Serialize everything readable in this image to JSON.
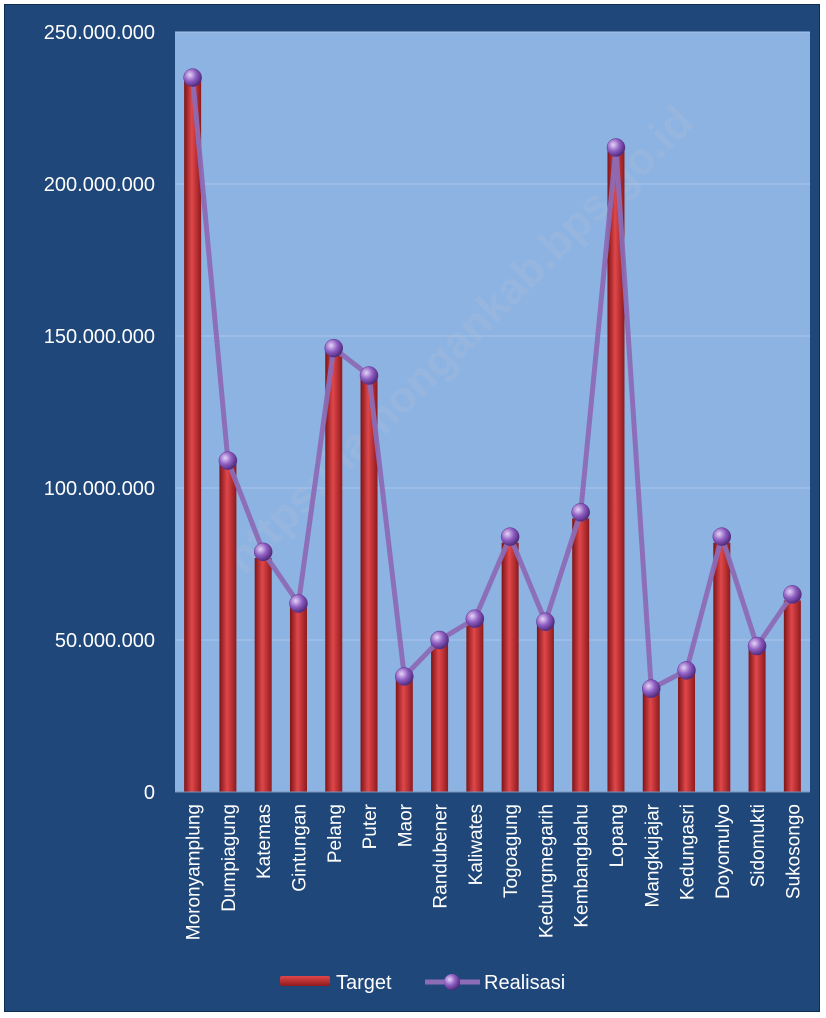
{
  "chart_data": {
    "type": "bar",
    "title": "",
    "xlabel": "",
    "ylabel": "",
    "ylim": [
      0,
      250000000
    ],
    "yticks": [
      "0",
      "50.000.000",
      "100.000.000",
      "150.000.000",
      "200.000.000",
      "250.000.000"
    ],
    "ytick_values": [
      0,
      50000000,
      100000000,
      150000000,
      200000000,
      250000000
    ],
    "grid": true,
    "legend_position": "bottom",
    "categories": [
      "Moronyamplung",
      "Dumpiagung",
      "Katemas",
      "Gintungan",
      "Pelang",
      "Puter",
      "Maor",
      "Randubener",
      "Kaliwates",
      "Togoagung",
      "Kedungmegarih",
      "Kembangbahu",
      "Lopang",
      "Mangkujajar",
      "Kedungasri",
      "Doyomulyo",
      "Sidomukti",
      "Sukosongo"
    ],
    "series": [
      {
        "name": "Target",
        "type": "bar",
        "color": "#c0282a",
        "values": [
          235000000,
          108000000,
          77000000,
          61000000,
          145000000,
          136000000,
          37000000,
          49000000,
          56000000,
          82000000,
          55000000,
          90000000,
          212000000,
          33000000,
          39000000,
          82000000,
          47000000,
          63000000
        ]
      },
      {
        "name": "Realisasi",
        "type": "line",
        "color": "#8c6cb5",
        "values": [
          235000000,
          109000000,
          79000000,
          62000000,
          146000000,
          137000000,
          38000000,
          50000000,
          57000000,
          84000000,
          56000000,
          92000000,
          212000000,
          34000000,
          40000000,
          84000000,
          48000000,
          65000000
        ]
      }
    ]
  },
  "watermark": "https://lamongankab.bps.go.id",
  "colors": {
    "frame_bg": "#1f477a",
    "plot_bg": "#8db3e2",
    "bar": "#c0282a",
    "line": "#8c6cb5",
    "marker": "#7e4fb0",
    "text": "#ffffff"
  }
}
